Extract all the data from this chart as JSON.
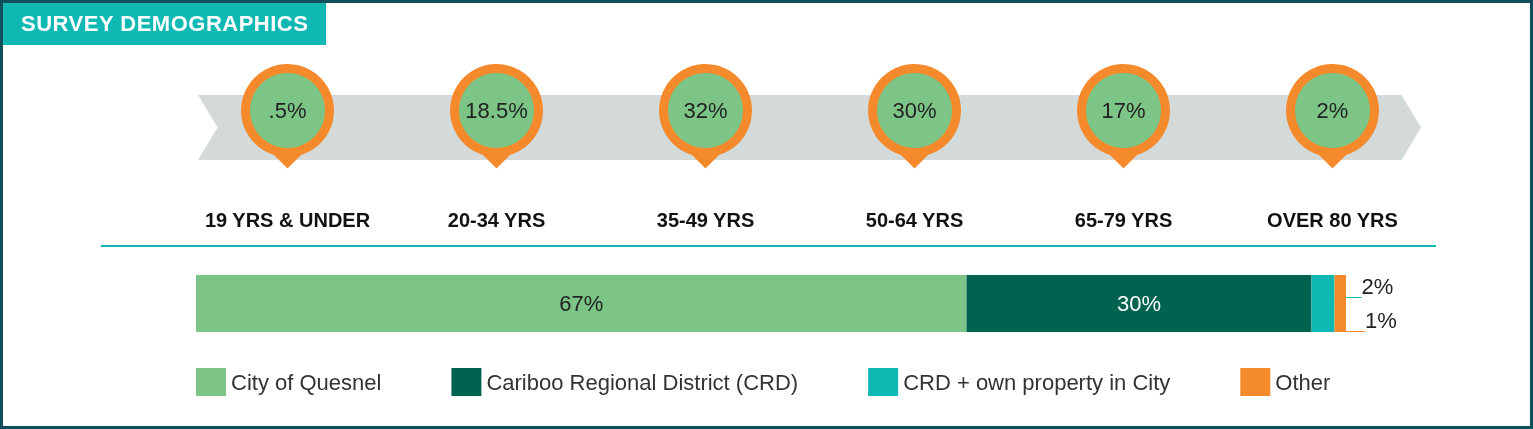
{
  "chart_data": [
    {
      "type": "other",
      "title": "SURVEY DEMOGRAPHICS",
      "categories": [
        "19 YRS & UNDER",
        "20-34 YRS",
        "35-49 YRS",
        "50-64 YRS",
        "65-79 YRS",
        "OVER 80 YRS"
      ],
      "values": [
        0.5,
        18.5,
        32,
        30,
        17,
        2
      ],
      "value_labels": [
        ".5%",
        "18.5%",
        "32%",
        "30%",
        "17%",
        "2%"
      ],
      "color": "#7cc586"
    },
    {
      "type": "bar",
      "orientation": "horizontal",
      "stacked": true,
      "categories": [
        null
      ],
      "legend": "bottom",
      "series": [
        {
          "name": "City of Quesnel",
          "color": "#7cc586",
          "values": [
            67
          ],
          "value_labels": [
            "67%"
          ]
        },
        {
          "name": "Cariboo Regional District (CRD)",
          "color": "#00634f",
          "values": [
            30
          ],
          "value_labels": [
            "30%"
          ]
        },
        {
          "name": "CRD + own property in City",
          "color": "#10b8b4",
          "values": [
            2
          ],
          "value_labels": [
            "2%"
          ]
        },
        {
          "name": "Other",
          "color": "#f58a2c",
          "values": [
            1
          ],
          "value_labels": [
            "1%"
          ]
        }
      ]
    }
  ]
}
